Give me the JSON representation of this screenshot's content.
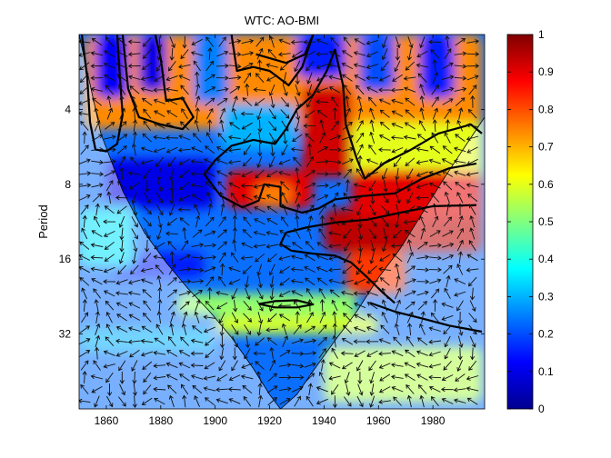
{
  "chart_data": {
    "type": "heatmap",
    "title": "WTC: AO-BMI",
    "xlabel": "",
    "ylabel": "Period",
    "xlim": [
      1850,
      1999
    ],
    "ylim": [
      2,
      64
    ],
    "y_scale": "log2",
    "y_reversed": true,
    "x_ticks": [
      1860,
      1880,
      1900,
      1920,
      1940,
      1960,
      1980
    ],
    "x_tick_labels": [
      "1860",
      "1880",
      "1900",
      "1920",
      "1940",
      "1960",
      "1980"
    ],
    "y_ticks": [
      4,
      8,
      16,
      32
    ],
    "y_tick_labels": [
      "4",
      "8",
      "16",
      "32"
    ],
    "colorbar": {
      "colormap": "jet",
      "range": [
        0,
        1
      ],
      "ticks": [
        0,
        0.1,
        0.2,
        0.3,
        0.4,
        0.5,
        0.6,
        0.7,
        0.8,
        0.9,
        1
      ],
      "tick_labels": [
        "0",
        "0.1",
        "0.2",
        "0.3",
        "0.4",
        "0.5",
        "0.6",
        "0.7",
        "0.8",
        "0.9",
        "1"
      ]
    },
    "cone_of_influence": [
      [
        1850,
        2
      ],
      [
        1858,
        5
      ],
      [
        1866,
        8.5
      ],
      [
        1874,
        12.5
      ],
      [
        1882,
        16.5
      ],
      [
        1890,
        21
      ],
      [
        1898,
        26
      ],
      [
        1906,
        33
      ],
      [
        1914,
        44
      ],
      [
        1920,
        56
      ],
      [
        1924,
        64
      ],
      [
        1930,
        56
      ],
      [
        1936,
        45
      ],
      [
        1944,
        34
      ],
      [
        1952,
        26
      ],
      [
        1960,
        19
      ],
      [
        1968,
        14.5
      ],
      [
        1976,
        10.5
      ],
      [
        1984,
        7.6
      ],
      [
        1992,
        5.6
      ],
      [
        1999,
        4.3
      ]
    ],
    "coherence_regions": [
      {
        "x_range": [
          1852,
          1998
        ],
        "period_range": [
          2,
          4.8
        ],
        "value": 0.74
      },
      {
        "x_range": [
          1860,
          1900
        ],
        "period_range": [
          6.3,
          10
        ],
        "value": 0.1
      },
      {
        "x_range": [
          1862,
          1896
        ],
        "period_range": [
          15,
          19
        ],
        "value": 0.15
      },
      {
        "x_range": [
          1850,
          1870
        ],
        "period_range": [
          10,
          17
        ],
        "value": 0.35
      },
      {
        "x_range": [
          1850,
          1900
        ],
        "period_range": [
          30,
          38
        ],
        "value": 0.3
      },
      {
        "x_range": [
          1886,
          1952
        ],
        "period_range": [
          22,
          27
        ],
        "value": 0.52
      },
      {
        "x_range": [
          1900,
          1960
        ],
        "period_range": [
          27,
          32
        ],
        "value": 0.58
      },
      {
        "x_range": [
          1940,
          1998
        ],
        "period_range": [
          36,
          60
        ],
        "value": 0.55
      },
      {
        "x_range": [
          1856,
          1868
        ],
        "period_range": [
          2,
          3.6
        ],
        "value": 0.12
      },
      {
        "x_range": [
          1872,
          1882
        ],
        "period_range": [
          2,
          3.4
        ],
        "value": 0.1
      },
      {
        "x_range": [
          1892,
          1905
        ],
        "period_range": [
          2,
          3.8
        ],
        "value": 0.25
      },
      {
        "x_range": [
          1930,
          1948
        ],
        "period_range": [
          2,
          3
        ],
        "value": 0.15
      },
      {
        "x_range": [
          1953,
          1966
        ],
        "period_range": [
          2,
          3.4
        ],
        "value": 0.2
      },
      {
        "x_range": [
          1975,
          1988
        ],
        "period_range": [
          2,
          3.6
        ],
        "value": 0.15
      },
      {
        "x_range": [
          1902,
          1930
        ],
        "period_range": [
          3.8,
          5.8
        ],
        "value": 0.3
      },
      {
        "x_range": [
          1950,
          1998
        ],
        "period_range": [
          4.5,
          8
        ],
        "value": 0.6
      },
      {
        "x_range": [
          1904,
          1936
        ],
        "period_range": [
          7,
          10
        ],
        "value": 0.9
      },
      {
        "x_range": [
          1932,
          1950
        ],
        "period_range": [
          3.2,
          7.5
        ],
        "value": 0.92
      },
      {
        "x_range": [
          1940,
          1998
        ],
        "period_range": [
          10,
          15
        ],
        "value": 0.94
      },
      {
        "x_range": [
          1950,
          1998
        ],
        "period_range": [
          7,
          11
        ],
        "value": 0.9
      },
      {
        "x_range": [
          1948,
          1970
        ],
        "period_range": [
          15,
          22
        ],
        "value": 0.82
      },
      {
        "x_range": [
          1915,
          1928
        ],
        "period_range": [
          8,
          9.6
        ],
        "value": 0.75
      }
    ],
    "significance_contours": [
      [
        [
          1851,
          2
        ],
        [
          1853,
          3
        ],
        [
          1854,
          4.5
        ],
        [
          1856,
          5.8
        ],
        [
          1860,
          5.9
        ],
        [
          1864,
          5.5
        ],
        [
          1866,
          4.2
        ],
        [
          1865,
          3
        ],
        [
          1864,
          2
        ]
      ],
      [
        [
          1866,
          2
        ],
        [
          1868,
          3.3
        ],
        [
          1872,
          4.3
        ],
        [
          1880,
          4.6
        ],
        [
          1888,
          4.8
        ],
        [
          1892,
          4.3
        ],
        [
          1888,
          3.6
        ],
        [
          1882,
          3.7
        ],
        [
          1880,
          2.5
        ],
        [
          1878,
          2
        ]
      ],
      [
        [
          1906,
          2
        ],
        [
          1908,
          2.8
        ],
        [
          1914,
          2.7
        ],
        [
          1920,
          2.8
        ],
        [
          1927,
          3.2
        ],
        [
          1932,
          2.7
        ],
        [
          1936,
          2
        ],
        [
          1933,
          2.4
        ],
        [
          1926,
          2.6
        ],
        [
          1915,
          2.4
        ]
      ],
      [
        [
          1896,
          7.3
        ],
        [
          1900,
          6.4
        ],
        [
          1906,
          5.6
        ],
        [
          1914,
          5.3
        ],
        [
          1922,
          5.5
        ],
        [
          1926,
          4.8
        ],
        [
          1930,
          4.0
        ],
        [
          1936,
          3.5
        ],
        [
          1941,
          2.8
        ],
        [
          1944,
          2.3
        ],
        [
          1947,
          3.2
        ],
        [
          1948,
          4.6
        ],
        [
          1952,
          6.3
        ],
        [
          1955,
          7.6
        ],
        [
          1962,
          6.6
        ],
        [
          1972,
          5.8
        ],
        [
          1982,
          5.0
        ],
        [
          1994,
          4.6
        ],
        [
          1998,
          5.0
        ]
      ],
      [
        [
          1896,
          7.3
        ],
        [
          1902,
          8.9
        ],
        [
          1910,
          9.9
        ],
        [
          1916,
          9.3
        ],
        [
          1918,
          8.0
        ],
        [
          1924,
          8.2
        ],
        [
          1924,
          9.8
        ],
        [
          1932,
          10.4
        ],
        [
          1938,
          10.0
        ],
        [
          1944,
          9.2
        ],
        [
          1955,
          8.9
        ],
        [
          1966,
          8.7
        ],
        [
          1976,
          7.6
        ],
        [
          1986,
          6.9
        ],
        [
          1996,
          6.6
        ]
      ],
      [
        [
          1926,
          12.5
        ],
        [
          1924,
          13.9
        ],
        [
          1928,
          14.8
        ],
        [
          1936,
          15.2
        ],
        [
          1944,
          15.5
        ],
        [
          1950,
          16.5
        ],
        [
          1956,
          19.0
        ],
        [
          1962,
          22.0
        ],
        [
          1966,
          24.0
        ]
      ],
      [
        [
          1926,
          12.5
        ],
        [
          1934,
          11.9
        ],
        [
          1944,
          11.4
        ],
        [
          1956,
          11.1
        ],
        [
          1968,
          10.4
        ],
        [
          1980,
          9.8
        ],
        [
          1996,
          9.7
        ]
      ],
      [
        [
          1916,
          24.2
        ],
        [
          1922,
          23.6
        ],
        [
          1930,
          23.4
        ],
        [
          1936,
          24.3
        ],
        [
          1930,
          25.0
        ],
        [
          1922,
          25.0
        ],
        [
          1916,
          24.2
        ]
      ],
      [
        [
          1957,
          24.0
        ],
        [
          1966,
          26.0
        ],
        [
          1976,
          27.7
        ],
        [
          1986,
          29.6
        ],
        [
          1998,
          31.3
        ]
      ]
    ],
    "phase_arrows_note": "",
    "notes": ""
  }
}
